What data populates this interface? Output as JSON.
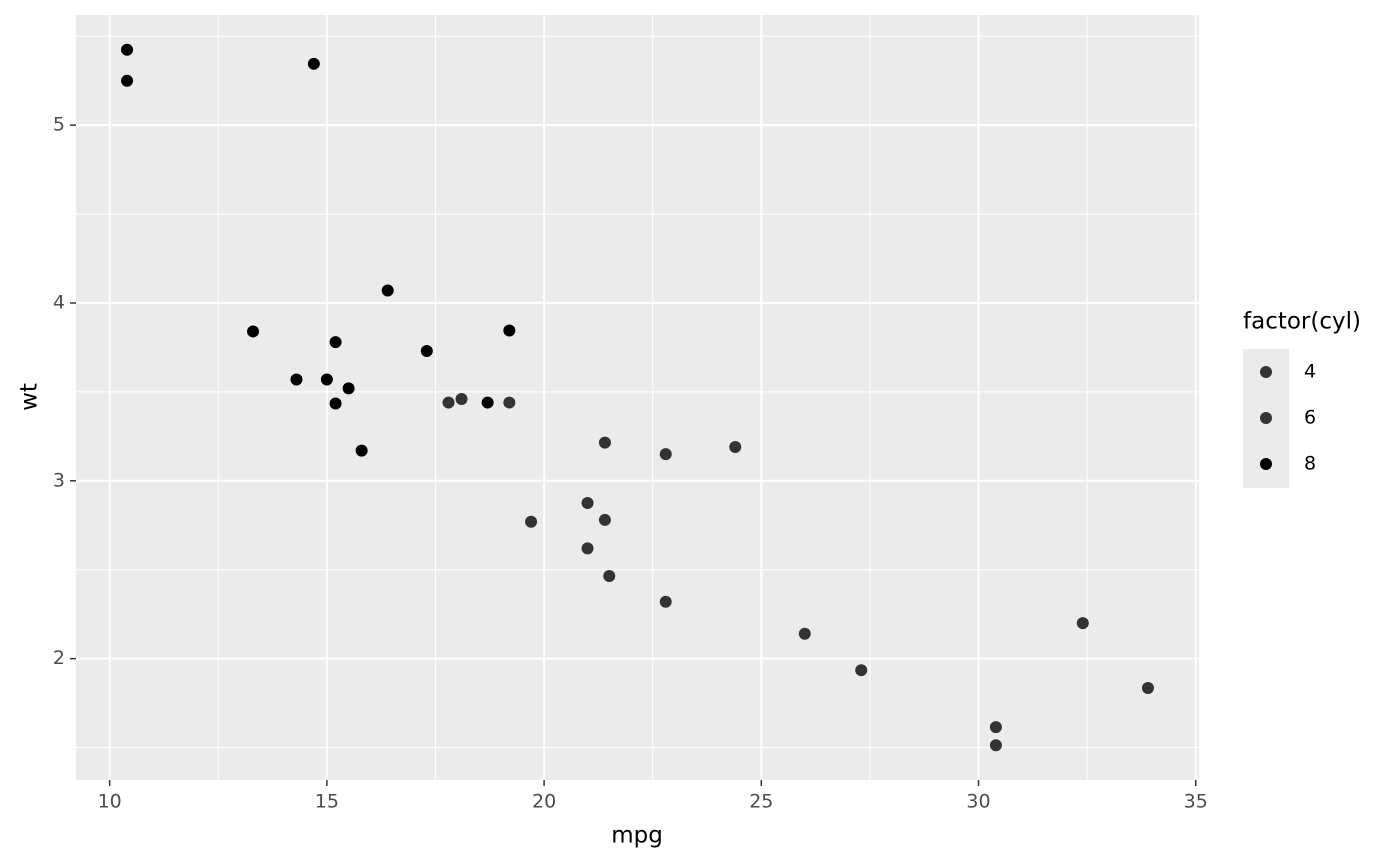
{
  "chart_data": {
    "type": "scatter",
    "x_label": "mpg",
    "y_label": "wt",
    "legend_title": "factor(cyl)",
    "xlim": [
      9.225,
      35.075
    ],
    "ylim": [
      1.3175,
      5.6195
    ],
    "xticks": [
      10,
      15,
      20,
      25,
      30,
      35
    ],
    "yticks": [
      2,
      3,
      4,
      5
    ],
    "x_minor": [
      12.5,
      17.5,
      22.5,
      27.5,
      32.5
    ],
    "y_minor": [
      1.5,
      2.5,
      3.5,
      4.5,
      5.5
    ],
    "grid": true,
    "legend": "right",
    "series": [
      {
        "name": "4",
        "color": "#333333",
        "x": [
          22.8,
          24.4,
          22.8,
          32.4,
          30.4,
          33.9,
          21.5,
          27.3,
          26.0,
          30.4,
          21.4
        ],
        "y": [
          2.32,
          3.19,
          3.15,
          2.2,
          1.615,
          1.835,
          2.465,
          1.935,
          2.14,
          1.513,
          2.78
        ]
      },
      {
        "name": "6",
        "color": "#333333",
        "x": [
          21.0,
          21.0,
          21.4,
          18.1,
          19.2,
          17.8,
          19.7
        ],
        "y": [
          2.62,
          2.875,
          3.215,
          3.46,
          3.44,
          3.44,
          2.77
        ]
      },
      {
        "name": "8",
        "color": "#000000",
        "x": [
          18.7,
          14.3,
          16.4,
          17.3,
          15.2,
          10.4,
          10.4,
          14.7,
          15.5,
          15.2,
          13.3,
          19.2,
          15.8,
          15.0
        ],
        "y": [
          3.44,
          3.57,
          4.07,
          3.73,
          3.78,
          5.25,
          5.424,
          5.345,
          3.52,
          3.435,
          3.84,
          3.845,
          3.17,
          3.57
        ]
      }
    ]
  }
}
